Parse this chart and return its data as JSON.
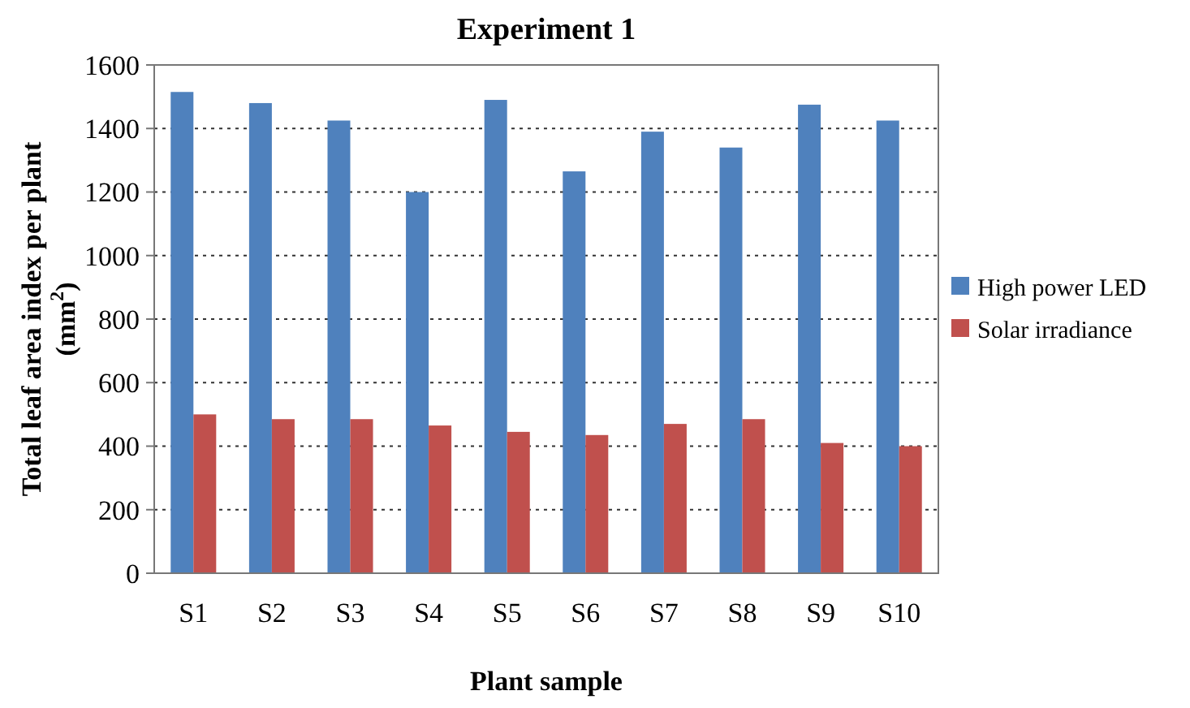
{
  "chart_data": {
    "type": "bar",
    "title": "Experiment 1",
    "xlabel": "Plant sample",
    "ylabel": "Total leaf area index per plant (mm$^{2}$)",
    "categories": [
      "S1",
      "S2",
      "S3",
      "S4",
      "S5",
      "S6",
      "S7",
      "S8",
      "S9",
      "S10"
    ],
    "series": [
      {
        "name": "High power LED",
        "color": "#4f81bd",
        "values": [
          1515,
          1480,
          1425,
          1200,
          1490,
          1265,
          1390,
          1340,
          1475,
          1425
        ]
      },
      {
        "name": "Solar irradiance",
        "color": "#c0504d",
        "values": [
          500,
          485,
          485,
          465,
          445,
          435,
          470,
          485,
          410,
          400
        ]
      }
    ],
    "ylim": [
      0,
      1600
    ],
    "yticks": [
      0,
      200,
      400,
      600,
      800,
      1000,
      1200,
      1400,
      1600
    ],
    "grid": "y",
    "legend": "right"
  }
}
